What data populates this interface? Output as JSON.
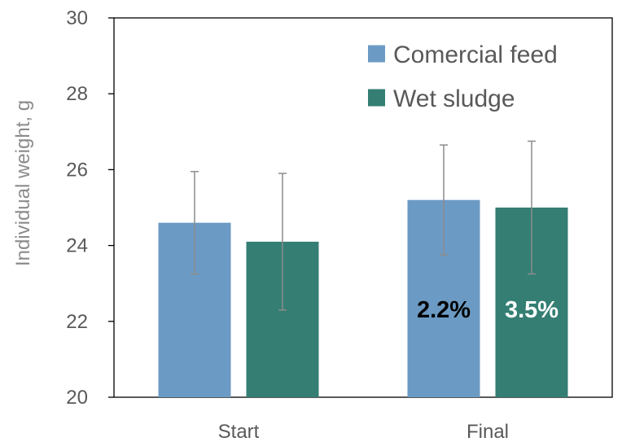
{
  "chart_data": {
    "type": "bar",
    "categories": [
      "Start",
      "Final"
    ],
    "ylabel": "Individual weight, g",
    "xlabel": "",
    "ylim": [
      20,
      30
    ],
    "yticks": [
      20,
      22,
      24,
      26,
      28,
      30
    ],
    "grid": false,
    "legend_position": "top-right",
    "series": [
      {
        "name": "Comercial feed",
        "color": "#6b9ac4",
        "values": [
          24.6,
          25.2
        ],
        "error": [
          1.35,
          1.45
        ],
        "labels": [
          "",
          "2.2%"
        ],
        "label_color": "#000000"
      },
      {
        "name": "Wet sludge",
        "color": "#347e73",
        "values": [
          24.1,
          25.0
        ],
        "error": [
          1.8,
          1.75
        ],
        "labels": [
          "",
          "3.5%"
        ],
        "label_color": "#ffffff"
      }
    ]
  }
}
